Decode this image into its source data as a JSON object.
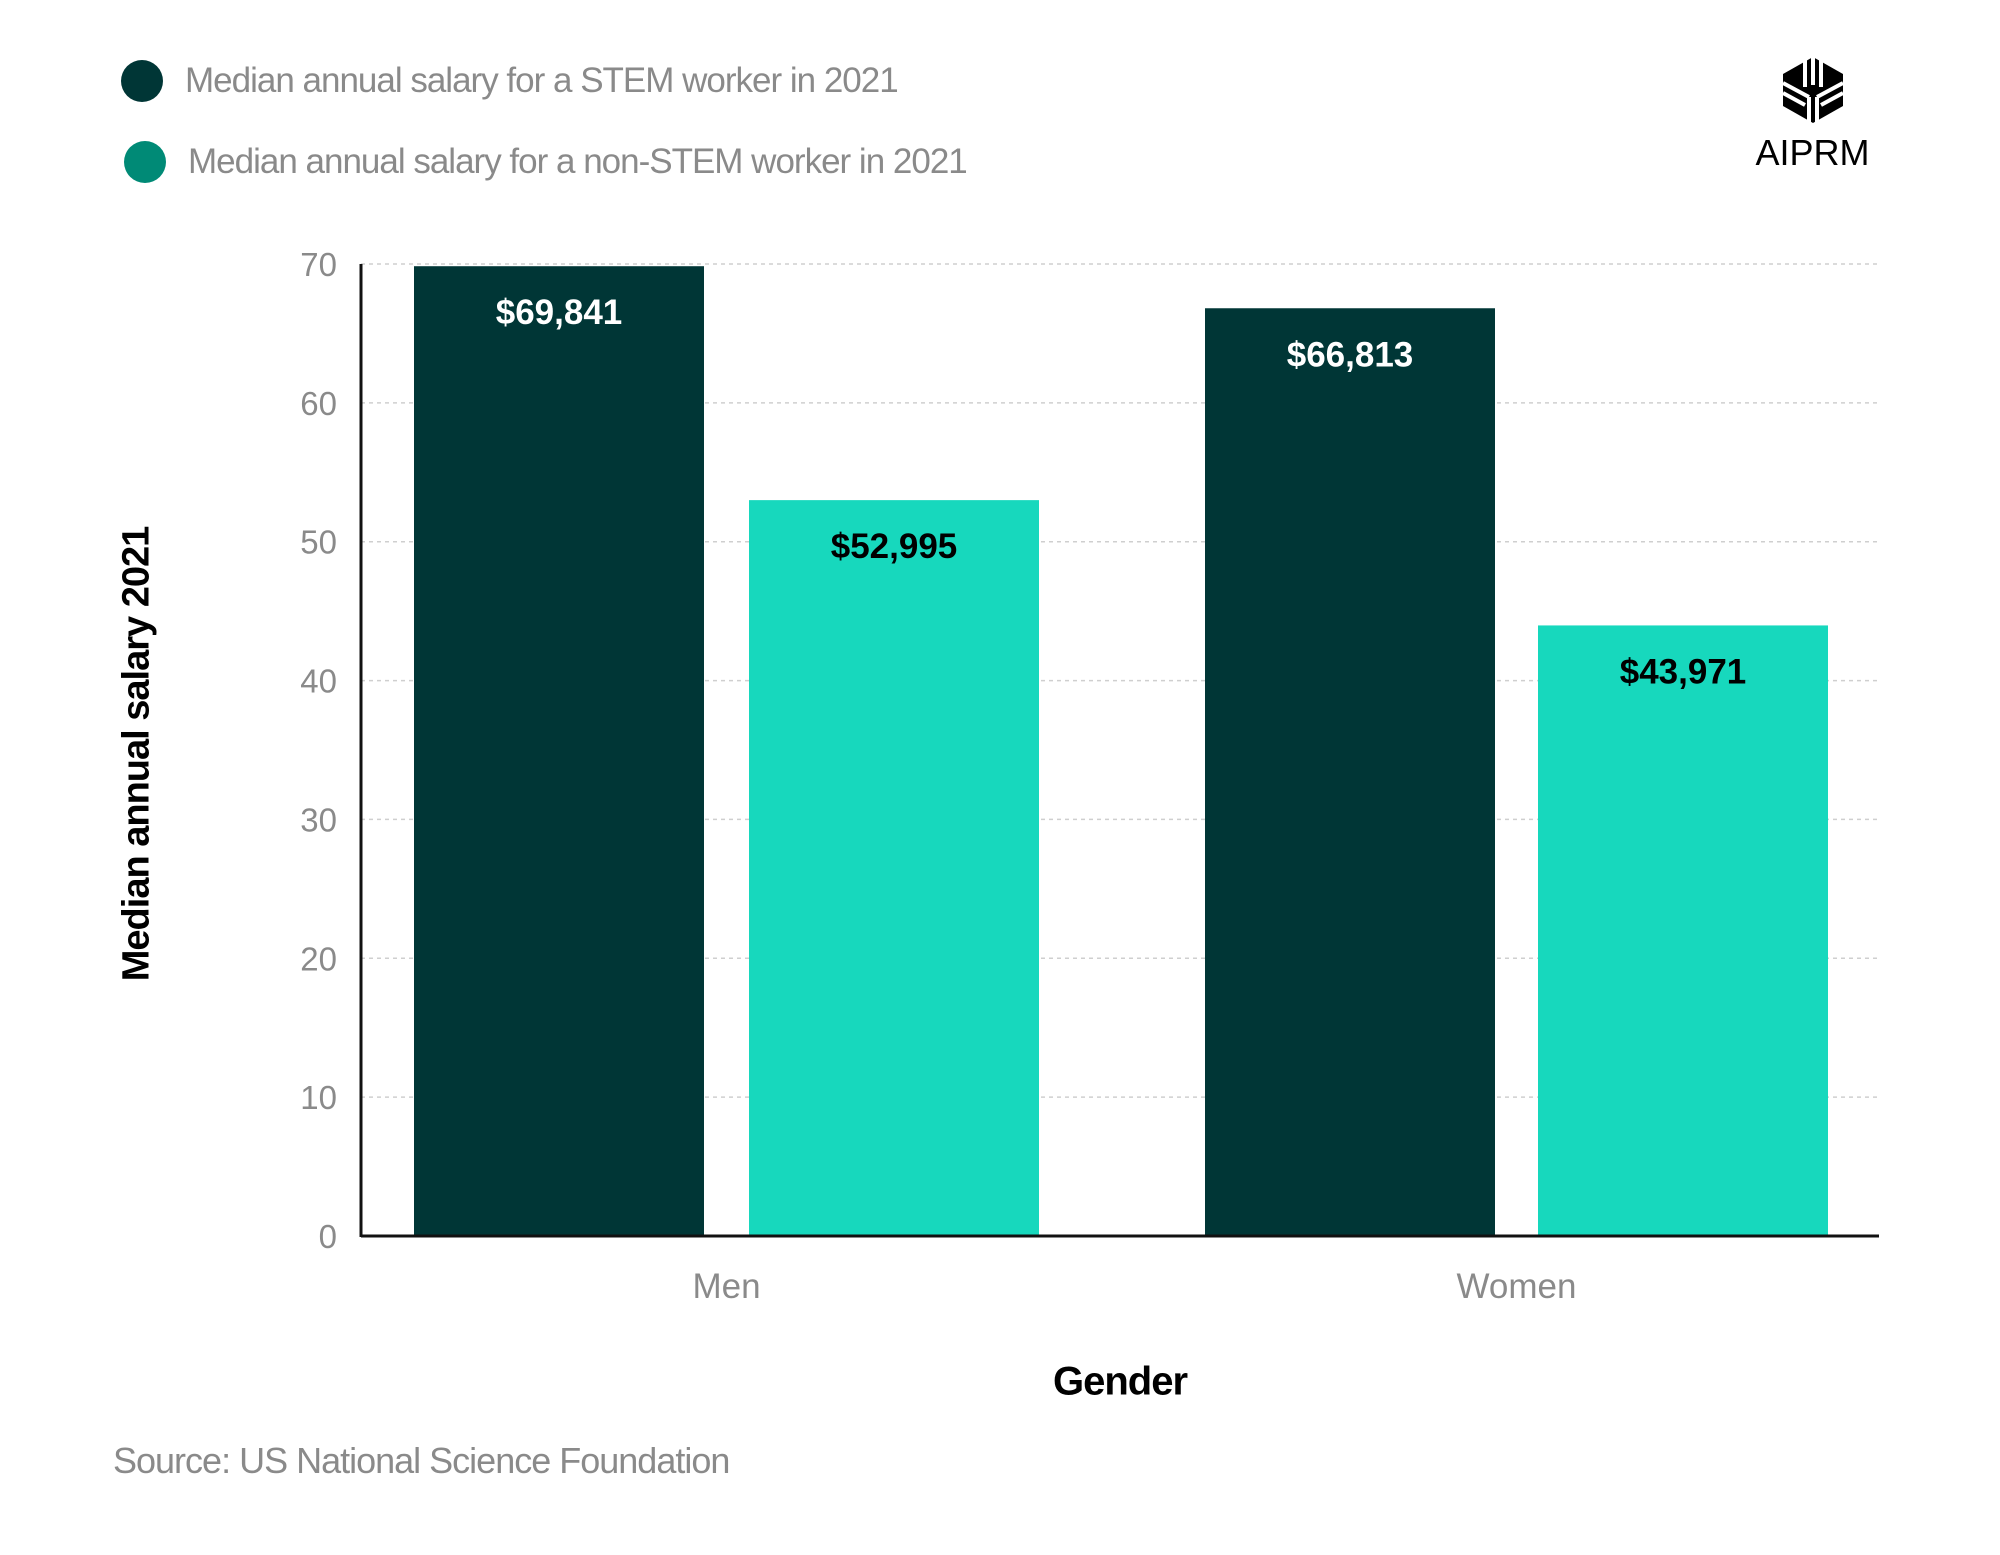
{
  "legend": [
    {
      "label": "Median annual salary for a STEM worker in 2021",
      "color": "#003636"
    },
    {
      "label": "Median annual salary for a non-STEM worker in 2021",
      "color": "#008a76"
    }
  ],
  "logo": {
    "text": "AIPRM"
  },
  "source": "Source: US National Science Foundation",
  "chart_data": {
    "type": "bar",
    "categories": [
      "Men",
      "Women"
    ],
    "series": [
      {
        "name": "Median annual salary for a STEM worker in 2021",
        "values": [
          69.841,
          66.813
        ],
        "labels": [
          "$69,841",
          "$66,813"
        ],
        "color": "#003636",
        "label_color": "#ffffff"
      },
      {
        "name": "Median annual salary for a non-STEM worker in 2021",
        "values": [
          52.995,
          43.971
        ],
        "labels": [
          "$52,995",
          "$43,971"
        ],
        "color": "#17d8bd",
        "label_color": "#000000"
      }
    ],
    "xlabel": "Gender",
    "ylabel": "Median annual salary 2021",
    "ylim": [
      0,
      70
    ],
    "yticks": [
      "0",
      "10",
      "20",
      "30",
      "40",
      "50",
      "60",
      "70"
    ],
    "grid": true
  }
}
